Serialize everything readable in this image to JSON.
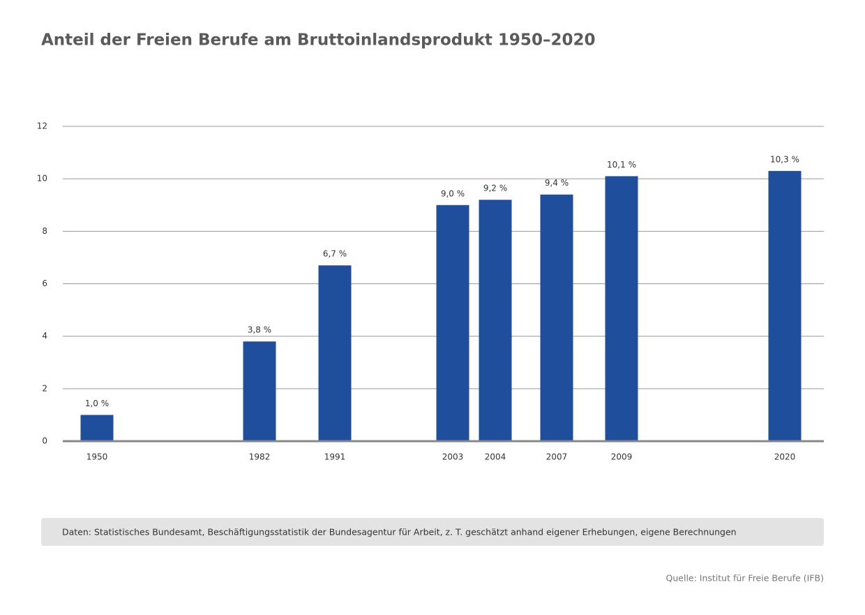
{
  "chart_data": {
    "type": "bar",
    "title": "Anteil der Freien Berufe am Bruttoinlandsprodukt 1950–2020",
    "categories": [
      "1950",
      "1982",
      "1991",
      "2003",
      "2004",
      "2007",
      "2009",
      "2020"
    ],
    "values": [
      1.0,
      3.8,
      6.7,
      9.0,
      9.2,
      9.4,
      10.1,
      10.3
    ],
    "value_labels": [
      "1,0 %",
      "3,8 %",
      "6,7 %",
      "9,0 %",
      "9,2 %",
      "9,4 %",
      "10,1 %",
      "10,3 %"
    ],
    "color": "#1f4e9c",
    "ylim": [
      0,
      12
    ],
    "yticks": [
      0,
      2,
      4,
      6,
      8,
      10,
      12
    ],
    "grid": true,
    "note": "Daten: Statistisches Bundesamt, Beschäftigungsstatistik der Bundesagentur für Arbeit, z. T. geschätzt anhand eigener Erhebungen, eigene Berechnungen",
    "source": "Quelle: Institut für Freie Berufe (IFB)"
  }
}
